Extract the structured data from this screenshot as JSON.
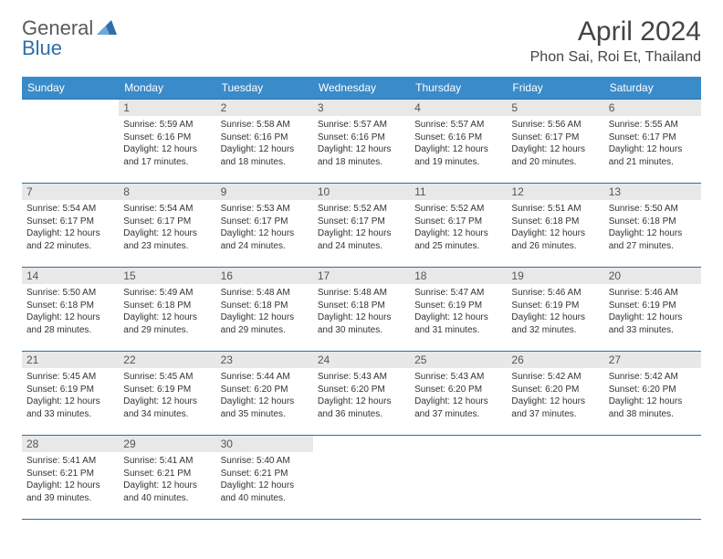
{
  "logo": {
    "text1": "General",
    "text2": "Blue"
  },
  "title": "April 2024",
  "location": "Phon Sai, Roi Et, Thailand",
  "colors": {
    "header_bg": "#3a8bc9",
    "border": "#2f6fa8",
    "daynum_bg": "#e8e8e8",
    "text": "#333333"
  },
  "day_headers": [
    "Sunday",
    "Monday",
    "Tuesday",
    "Wednesday",
    "Thursday",
    "Friday",
    "Saturday"
  ],
  "weeks": [
    [
      {
        "n": "",
        "sr": "",
        "ss": "",
        "dl": ""
      },
      {
        "n": "1",
        "sr": "Sunrise: 5:59 AM",
        "ss": "Sunset: 6:16 PM",
        "dl": "Daylight: 12 hours and 17 minutes."
      },
      {
        "n": "2",
        "sr": "Sunrise: 5:58 AM",
        "ss": "Sunset: 6:16 PM",
        "dl": "Daylight: 12 hours and 18 minutes."
      },
      {
        "n": "3",
        "sr": "Sunrise: 5:57 AM",
        "ss": "Sunset: 6:16 PM",
        "dl": "Daylight: 12 hours and 18 minutes."
      },
      {
        "n": "4",
        "sr": "Sunrise: 5:57 AM",
        "ss": "Sunset: 6:16 PM",
        "dl": "Daylight: 12 hours and 19 minutes."
      },
      {
        "n": "5",
        "sr": "Sunrise: 5:56 AM",
        "ss": "Sunset: 6:17 PM",
        "dl": "Daylight: 12 hours and 20 minutes."
      },
      {
        "n": "6",
        "sr": "Sunrise: 5:55 AM",
        "ss": "Sunset: 6:17 PM",
        "dl": "Daylight: 12 hours and 21 minutes."
      }
    ],
    [
      {
        "n": "7",
        "sr": "Sunrise: 5:54 AM",
        "ss": "Sunset: 6:17 PM",
        "dl": "Daylight: 12 hours and 22 minutes."
      },
      {
        "n": "8",
        "sr": "Sunrise: 5:54 AM",
        "ss": "Sunset: 6:17 PM",
        "dl": "Daylight: 12 hours and 23 minutes."
      },
      {
        "n": "9",
        "sr": "Sunrise: 5:53 AM",
        "ss": "Sunset: 6:17 PM",
        "dl": "Daylight: 12 hours and 24 minutes."
      },
      {
        "n": "10",
        "sr": "Sunrise: 5:52 AM",
        "ss": "Sunset: 6:17 PM",
        "dl": "Daylight: 12 hours and 24 minutes."
      },
      {
        "n": "11",
        "sr": "Sunrise: 5:52 AM",
        "ss": "Sunset: 6:17 PM",
        "dl": "Daylight: 12 hours and 25 minutes."
      },
      {
        "n": "12",
        "sr": "Sunrise: 5:51 AM",
        "ss": "Sunset: 6:18 PM",
        "dl": "Daylight: 12 hours and 26 minutes."
      },
      {
        "n": "13",
        "sr": "Sunrise: 5:50 AM",
        "ss": "Sunset: 6:18 PM",
        "dl": "Daylight: 12 hours and 27 minutes."
      }
    ],
    [
      {
        "n": "14",
        "sr": "Sunrise: 5:50 AM",
        "ss": "Sunset: 6:18 PM",
        "dl": "Daylight: 12 hours and 28 minutes."
      },
      {
        "n": "15",
        "sr": "Sunrise: 5:49 AM",
        "ss": "Sunset: 6:18 PM",
        "dl": "Daylight: 12 hours and 29 minutes."
      },
      {
        "n": "16",
        "sr": "Sunrise: 5:48 AM",
        "ss": "Sunset: 6:18 PM",
        "dl": "Daylight: 12 hours and 29 minutes."
      },
      {
        "n": "17",
        "sr": "Sunrise: 5:48 AM",
        "ss": "Sunset: 6:18 PM",
        "dl": "Daylight: 12 hours and 30 minutes."
      },
      {
        "n": "18",
        "sr": "Sunrise: 5:47 AM",
        "ss": "Sunset: 6:19 PM",
        "dl": "Daylight: 12 hours and 31 minutes."
      },
      {
        "n": "19",
        "sr": "Sunrise: 5:46 AM",
        "ss": "Sunset: 6:19 PM",
        "dl": "Daylight: 12 hours and 32 minutes."
      },
      {
        "n": "20",
        "sr": "Sunrise: 5:46 AM",
        "ss": "Sunset: 6:19 PM",
        "dl": "Daylight: 12 hours and 33 minutes."
      }
    ],
    [
      {
        "n": "21",
        "sr": "Sunrise: 5:45 AM",
        "ss": "Sunset: 6:19 PM",
        "dl": "Daylight: 12 hours and 33 minutes."
      },
      {
        "n": "22",
        "sr": "Sunrise: 5:45 AM",
        "ss": "Sunset: 6:19 PM",
        "dl": "Daylight: 12 hours and 34 minutes."
      },
      {
        "n": "23",
        "sr": "Sunrise: 5:44 AM",
        "ss": "Sunset: 6:20 PM",
        "dl": "Daylight: 12 hours and 35 minutes."
      },
      {
        "n": "24",
        "sr": "Sunrise: 5:43 AM",
        "ss": "Sunset: 6:20 PM",
        "dl": "Daylight: 12 hours and 36 minutes."
      },
      {
        "n": "25",
        "sr": "Sunrise: 5:43 AM",
        "ss": "Sunset: 6:20 PM",
        "dl": "Daylight: 12 hours and 37 minutes."
      },
      {
        "n": "26",
        "sr": "Sunrise: 5:42 AM",
        "ss": "Sunset: 6:20 PM",
        "dl": "Daylight: 12 hours and 37 minutes."
      },
      {
        "n": "27",
        "sr": "Sunrise: 5:42 AM",
        "ss": "Sunset: 6:20 PM",
        "dl": "Daylight: 12 hours and 38 minutes."
      }
    ],
    [
      {
        "n": "28",
        "sr": "Sunrise: 5:41 AM",
        "ss": "Sunset: 6:21 PM",
        "dl": "Daylight: 12 hours and 39 minutes."
      },
      {
        "n": "29",
        "sr": "Sunrise: 5:41 AM",
        "ss": "Sunset: 6:21 PM",
        "dl": "Daylight: 12 hours and 40 minutes."
      },
      {
        "n": "30",
        "sr": "Sunrise: 5:40 AM",
        "ss": "Sunset: 6:21 PM",
        "dl": "Daylight: 12 hours and 40 minutes."
      },
      {
        "n": "",
        "sr": "",
        "ss": "",
        "dl": ""
      },
      {
        "n": "",
        "sr": "",
        "ss": "",
        "dl": ""
      },
      {
        "n": "",
        "sr": "",
        "ss": "",
        "dl": ""
      },
      {
        "n": "",
        "sr": "",
        "ss": "",
        "dl": ""
      }
    ]
  ]
}
